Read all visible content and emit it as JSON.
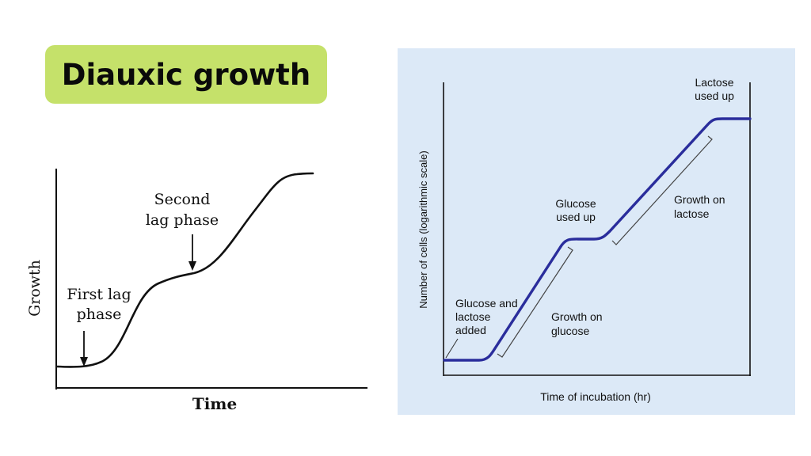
{
  "title": "Diauxic growth",
  "colors": {
    "title_bg": "#c5e16a",
    "panel_bg": "#dce9f7",
    "curve_blue": "#2a2d9c",
    "ink": "#111111"
  },
  "left_figure": {
    "y_axis_label": "Growth",
    "x_axis_label": "Time",
    "first_lag_line1": "First lag",
    "first_lag_line2": "phase",
    "second_lag_line1": "Second",
    "second_lag_line2": "lag phase"
  },
  "right_figure": {
    "y_axis_label": "Number of cells (logarithmic scale)",
    "x_axis_label": "Time of incubation (hr)",
    "glucose_lactose_added": [
      "Glucose and",
      "lactose",
      "added"
    ],
    "glucose_used_up": [
      "Glucose",
      "used up"
    ],
    "lactose_used_up": [
      "Lactose",
      "used up"
    ],
    "growth_on_glucose": [
      "Growth on",
      "glucose"
    ],
    "growth_on_lactose": [
      "Growth on",
      "lactose"
    ]
  }
}
